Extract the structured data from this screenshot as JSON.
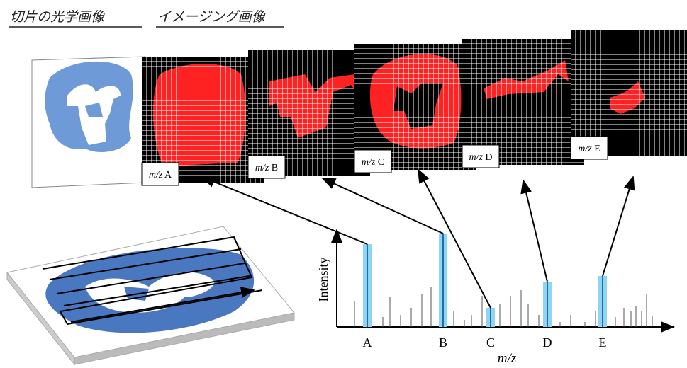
{
  "header": {
    "optical_title": "切片の光学画像",
    "imaging_title": "イメージング画像"
  },
  "panels": [
    {
      "mz": "m/z",
      "letter": "A"
    },
    {
      "mz": "m/z",
      "letter": "B"
    },
    {
      "mz": "m/z",
      "letter": "C"
    },
    {
      "mz": "m/z",
      "letter": "D"
    },
    {
      "mz": "m/z",
      "letter": "E"
    }
  ],
  "spectrum": {
    "y_label": "Intensity",
    "x_label": "m/z",
    "peaks": [
      "A",
      "B",
      "C",
      "D",
      "E"
    ]
  }
}
